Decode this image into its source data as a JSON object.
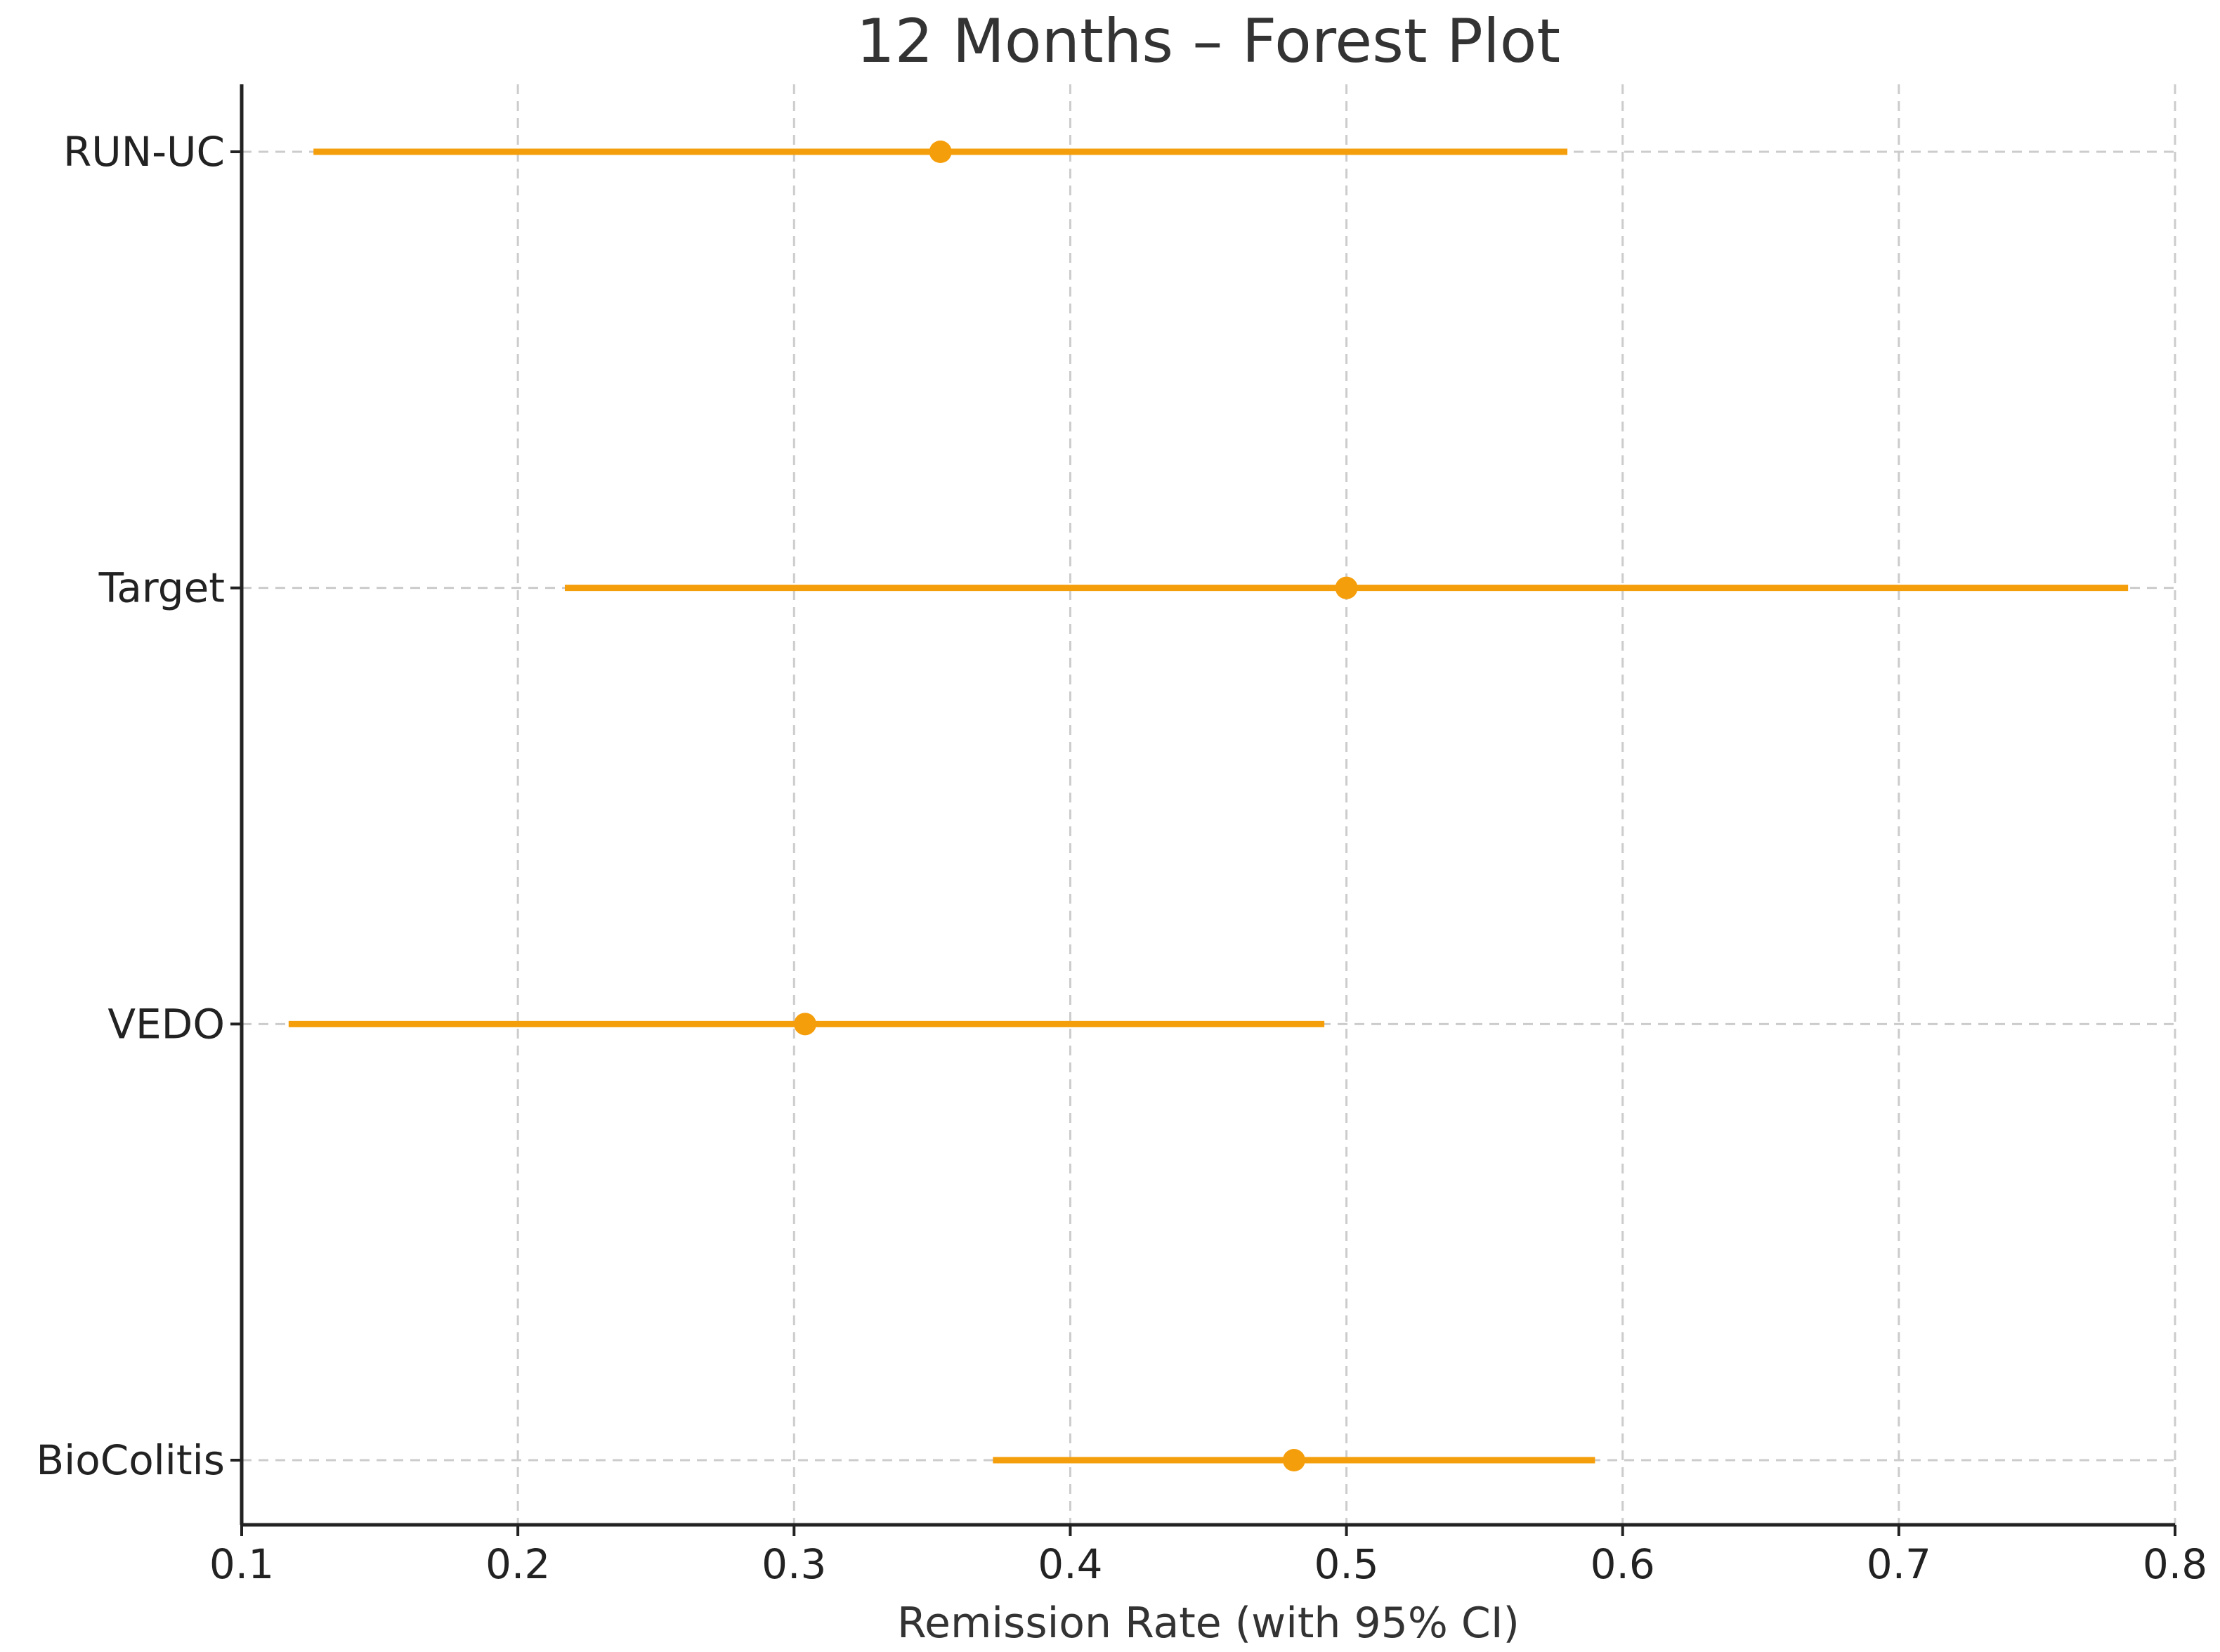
{
  "chart_data": {
    "type": "forest",
    "title": "12 Months – Forest Plot",
    "xlabel": "Remission Rate (with 95% CI)",
    "ylabel": "",
    "xlim": [
      0.1,
      0.8
    ],
    "xticks": [
      "0.1",
      "0.2",
      "0.3",
      "0.4",
      "0.5",
      "0.6",
      "0.7",
      "0.8"
    ],
    "grid": true,
    "color": "#f59e0b",
    "studies": [
      {
        "label": "RUN-UC",
        "estimate": 0.353,
        "ci_low": 0.126,
        "ci_high": 0.58
      },
      {
        "label": "Target",
        "estimate": 0.5,
        "ci_low": 0.217,
        "ci_high": 0.783
      },
      {
        "label": "VEDO",
        "estimate": 0.304,
        "ci_low": 0.117,
        "ci_high": 0.492
      },
      {
        "label": "BioColitis",
        "estimate": 0.481,
        "ci_low": 0.372,
        "ci_high": 0.59
      }
    ]
  }
}
